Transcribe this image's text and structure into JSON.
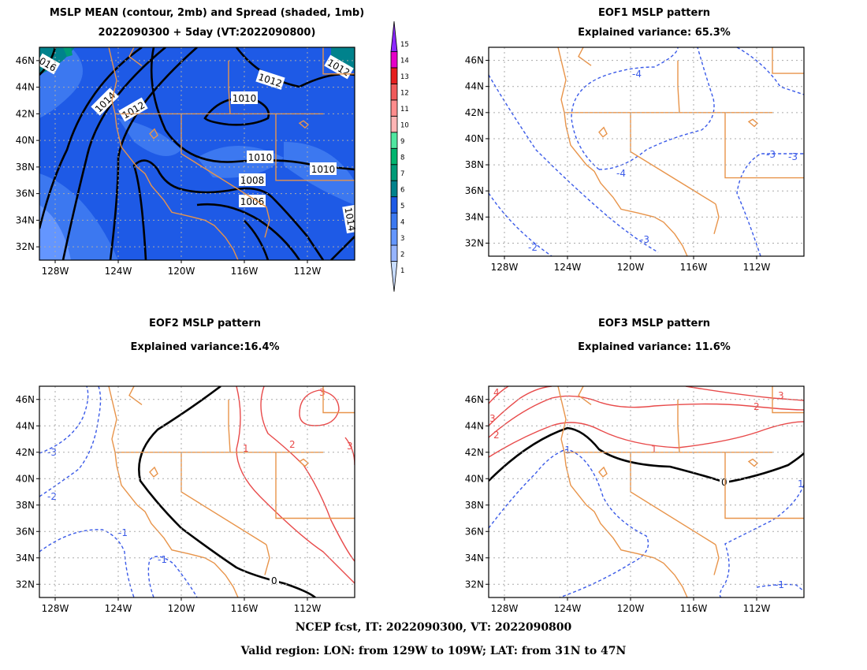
{
  "panels": {
    "p1": {
      "title1": "MSLP MEAN (contour, 2mb) and Spread (shaded, 1mb)",
      "title2": "2022090300 + 5day (VT:2022090800)"
    },
    "p2": {
      "title1": "EOF1 MSLP pattern",
      "title2": "Explained variance: 65.3%"
    },
    "p3": {
      "title1": "EOF2 MSLP pattern",
      "title2": "Explained variance:16.4%"
    },
    "p4": {
      "title1": "EOF3 MSLP pattern",
      "title2": "Explained variance: 11.6%"
    }
  },
  "footer": {
    "line1": "NCEP fcst, IT: 2022090300, VT: 2022090800",
    "line2": "Valid region: LON: from 129W to 109W; LAT: from 31N to 47N"
  },
  "colors": {
    "coast": "#e8944a",
    "positive": "#e84a4a",
    "negative": "#3a5ae8",
    "zero": "#000000",
    "grid": "#aaaaaa"
  },
  "colorbar": {
    "levels": [
      "1",
      "2",
      "3",
      "4",
      "5",
      "6",
      "7",
      "8",
      "9",
      "10",
      "11",
      "12",
      "13",
      "14",
      "15"
    ],
    "colors": [
      "#c8dcff",
      "#96b4ff",
      "#6496ff",
      "#3c78f0",
      "#1e5ae6",
      "#00828c",
      "#009b78",
      "#00b46e",
      "#50e6a0",
      "#ffb4b4",
      "#ff8c8c",
      "#f05a5a",
      "#e61e1e",
      "#e600c8",
      "#8c28ff"
    ]
  },
  "chart_data": [
    {
      "type": "contour",
      "title": "MSLP MEAN (contour, 2mb) and Spread (shaded, 1mb)",
      "subtitle": "2022090300 + 5day (VT:2022090800)",
      "x_ticks": [
        "128W",
        "124W",
        "120W",
        "116W",
        "112W"
      ],
      "y_ticks": [
        "46N",
        "44N",
        "42N",
        "40N",
        "38N",
        "36N",
        "34N",
        "32N"
      ],
      "xlim": [
        -129,
        -109
      ],
      "ylim": [
        31,
        47
      ],
      "grid": true,
      "contour_labels": [
        "016",
        "1014",
        "1012",
        "1012",
        "1010",
        "1012",
        "1010",
        "1008",
        "1006",
        "1010",
        "1014"
      ],
      "shading_levels": [
        1,
        2,
        3,
        4,
        5,
        6,
        7,
        8,
        9,
        10,
        11,
        12,
        13,
        14,
        15
      ]
    },
    {
      "type": "contour",
      "title": "EOF1 MSLP pattern",
      "subtitle": "Explained variance: 65.3%",
      "x_ticks": [
        "128W",
        "124W",
        "120W",
        "116W",
        "112W"
      ],
      "y_ticks": [
        "46N",
        "44N",
        "42N",
        "40N",
        "38N",
        "36N",
        "34N",
        "32N"
      ],
      "xlim": [
        -129,
        -109
      ],
      "ylim": [
        31,
        47
      ],
      "grid": true,
      "contour_labels": [
        "-4",
        "-4",
        "-3",
        "-3",
        "-3",
        "-2"
      ]
    },
    {
      "type": "contour",
      "title": "EOF2 MSLP pattern",
      "subtitle": "Explained variance:16.4%",
      "x_ticks": [
        "128W",
        "124W",
        "120W",
        "116W",
        "112W"
      ],
      "y_ticks": [
        "46N",
        "44N",
        "42N",
        "40N",
        "38N",
        "36N",
        "34N",
        "32N"
      ],
      "xlim": [
        -129,
        -109
      ],
      "ylim": [
        31,
        47
      ],
      "grid": true,
      "contour_labels": [
        "-3",
        "-2",
        "-1",
        "-1",
        "0",
        "1",
        "2",
        "3",
        "3"
      ]
    },
    {
      "type": "contour",
      "title": "EOF3 MSLP pattern",
      "subtitle": "Explained variance: 11.6%",
      "x_ticks": [
        "128W",
        "124W",
        "120W",
        "116W",
        "112W"
      ],
      "y_ticks": [
        "46N",
        "44N",
        "42N",
        "40N",
        "38N",
        "36N",
        "34N",
        "32N"
      ],
      "xlim": [
        -129,
        -109
      ],
      "ylim": [
        31,
        47
      ],
      "grid": true,
      "contour_labels": [
        "4",
        "3",
        "2",
        "-1",
        "1",
        "2",
        "3",
        "0",
        "1",
        "-1"
      ]
    }
  ]
}
